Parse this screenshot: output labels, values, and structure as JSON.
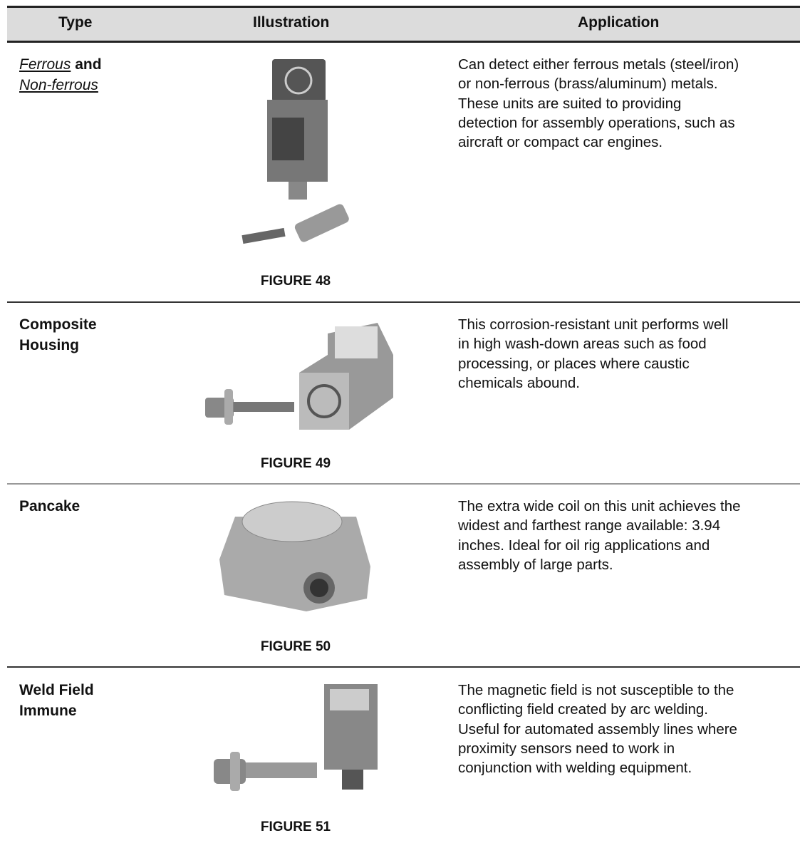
{
  "header": {
    "columns": [
      "Type",
      "Illustration",
      "Application"
    ]
  },
  "rows": [
    {
      "type": [
        "Ferrous",
        "and",
        "Non-ferrous"
      ],
      "figure": "FIGURE 48",
      "application": [
        "Can detect either ferrous metals (steel/iron)",
        "or non-ferrous (brass/aluminum) metals.",
        "These units are suited to providing",
        "detection for assembly operations, such as",
        "aircraft or compact car engines."
      ]
    },
    {
      "type": [
        "Composite",
        "Housing"
      ],
      "figure": "FIGURE 49",
      "application": [
        "This corrosion-resistant unit performs well",
        "in high wash-down areas such as food",
        "processing, or places where caustic",
        "chemicals abound."
      ]
    },
    {
      "type": [
        "Pancake"
      ],
      "figure": "FIGURE 50",
      "application": [
        "The extra wide coil on this unit achieves the",
        "widest and farthest range available: 3.94",
        "inches. Ideal for oil rig applications and",
        "assembly of large parts."
      ]
    },
    {
      "type": [
        "Weld Field",
        "Immune"
      ],
      "figure": "FIGURE 51",
      "application": [
        "The magnetic field is not susceptible to the",
        "conflicting field created by arc welding.",
        "Useful for automated assembly lines where",
        "proximity sensors need to work in",
        "conjunction with welding equipment."
      ]
    }
  ]
}
